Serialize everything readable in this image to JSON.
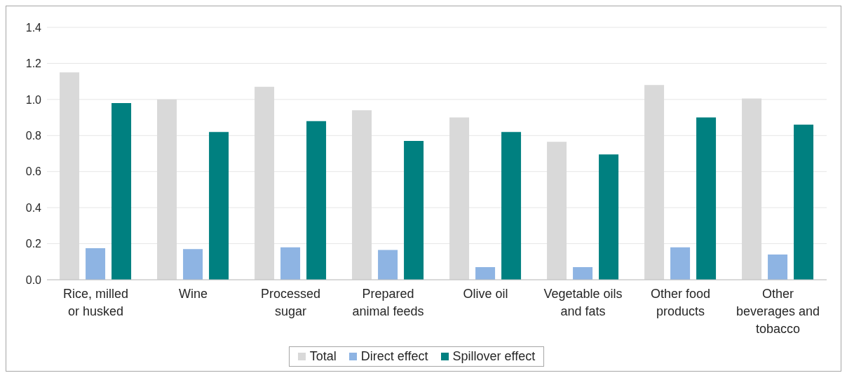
{
  "chart_data": {
    "type": "bar",
    "categories": [
      "Rice, milled or husked",
      "Wine",
      "Processed sugar",
      "Prepared animal feeds",
      "Olive oil",
      "Vegetable oils and fats",
      "Other food products",
      "Other beverages and tobacco"
    ],
    "series": [
      {
        "name": "Total",
        "color": "#d9d9d9",
        "values": [
          1.15,
          1.0,
          1.07,
          0.94,
          0.9,
          0.765,
          1.08,
          1.005
        ]
      },
      {
        "name": "Direct effect",
        "color": "#8eb4e3",
        "values": [
          0.175,
          0.17,
          0.18,
          0.165,
          0.07,
          0.07,
          0.18,
          0.14
        ]
      },
      {
        "name": "Spillover effect",
        "color": "#008080",
        "values": [
          0.98,
          0.82,
          0.88,
          0.77,
          0.82,
          0.695,
          0.9,
          0.86
        ]
      }
    ],
    "ylim": [
      0,
      1.4
    ],
    "yticks": [
      {
        "value": 0,
        "label": "0.0"
      },
      0.2,
      0.4,
      0.6,
      0.8,
      {
        "value": 1,
        "label": "1.0"
      },
      1.2,
      1.4
    ],
    "grid": "y",
    "legend": "bottom"
  }
}
